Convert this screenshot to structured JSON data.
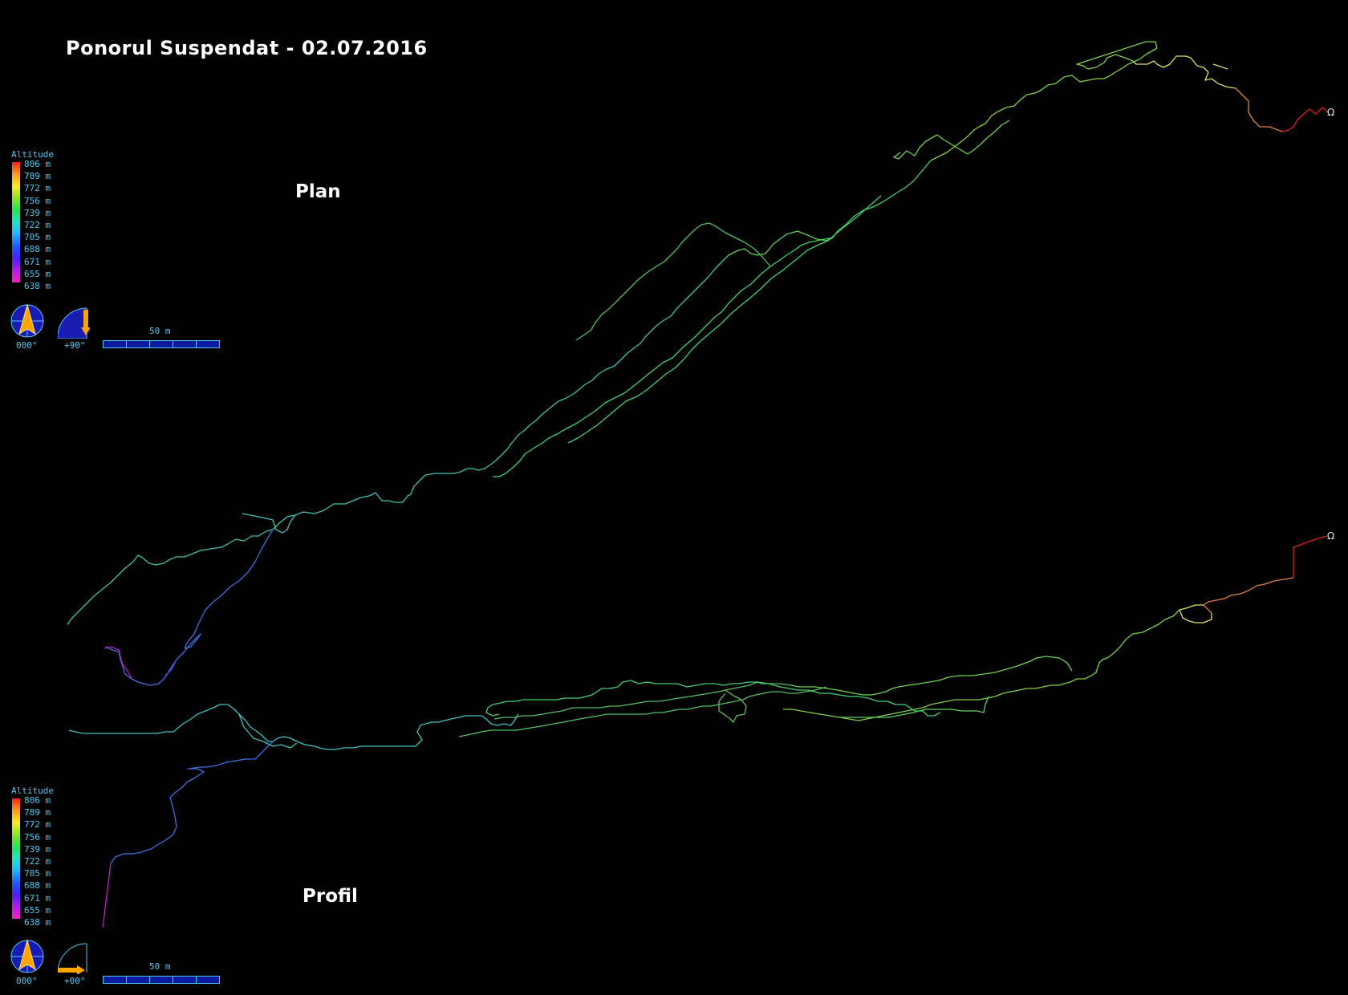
{
  "title": "Ponorul Suspendat - 02.07.2016",
  "views": {
    "plan": {
      "label": "Plan",
      "legend": {
        "title": "Altitude",
        "ticks": [
          "806 m",
          "789 m",
          "772 m",
          "756 m",
          "739 m",
          "722 m",
          "705 m",
          "688 m",
          "671 m",
          "655 m",
          "638 m"
        ]
      },
      "compass_label": "000°",
      "tilt_label": "+90°",
      "scale_label": "50 m"
    },
    "profile": {
      "label": "Profil",
      "legend": {
        "title": "Altitude",
        "ticks": [
          "806 m",
          "789 m",
          "772 m",
          "756 m",
          "739 m",
          "722 m",
          "705 m",
          "688 m",
          "671 m",
          "655 m",
          "638 m"
        ]
      },
      "compass_label": "000°",
      "tilt_label": "+00°",
      "scale_label": "50 m"
    }
  },
  "entrance_marker": "Ω",
  "colors": {
    "background": "#000000",
    "title": "#ffffff",
    "legend_text": "#4fc8f0",
    "compass_fill": "#1a1ab4",
    "arrow": "#ffa500",
    "passage_high": "#e02020",
    "passage_upper": "#e0e060",
    "passage_mid": "#50d050",
    "passage_low": "#40c0d0",
    "passage_lower": "#3060e0",
    "passage_bottom": "#c020c0"
  }
}
